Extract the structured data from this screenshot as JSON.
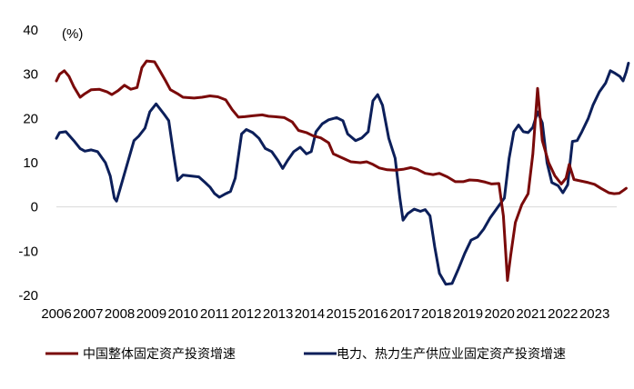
{
  "chart_data": {
    "type": "line",
    "title": "",
    "xlabel": "",
    "ylabel": "",
    "unit_label": "(%)",
    "xlim": [
      2006.0,
      2023.7
    ],
    "ylim": [
      -20,
      40
    ],
    "yticks": [
      40,
      30,
      20,
      10,
      0,
      -10,
      -20
    ],
    "ytick_labels": [
      "40",
      "30",
      "20",
      "10",
      "0",
      "-10",
      "-20"
    ],
    "xticks": [
      2006,
      2007,
      2008,
      2009,
      2010,
      2011,
      2012,
      2013,
      2014,
      2015,
      2016,
      2017,
      2018,
      2019,
      2020,
      2021,
      2022,
      2023
    ],
    "xtick_labels": [
      "2006",
      "2007",
      "2008",
      "2009",
      "2010",
      "2011",
      "2012",
      "2013",
      "2014",
      "2015",
      "2016",
      "2017",
      "2018",
      "2019",
      "2020",
      "2021",
      "2022",
      "2023"
    ],
    "legend_position": "bottom",
    "series": [
      {
        "name": "中国整体固定资产投资增速",
        "color": "#7a0a0a",
        "points": [
          [
            2006.0,
            28.5
          ],
          [
            2006.1,
            30.0
          ],
          [
            2006.25,
            30.8
          ],
          [
            2006.4,
            29.5
          ],
          [
            2006.55,
            27.2
          ],
          [
            2006.75,
            24.8
          ],
          [
            2006.9,
            25.6
          ],
          [
            2007.1,
            26.5
          ],
          [
            2007.35,
            26.6
          ],
          [
            2007.6,
            26.0
          ],
          [
            2007.75,
            25.4
          ],
          [
            2007.95,
            26.3
          ],
          [
            2008.15,
            27.5
          ],
          [
            2008.35,
            26.6
          ],
          [
            2008.55,
            27.0
          ],
          [
            2008.7,
            31.5
          ],
          [
            2008.85,
            33.0
          ],
          [
            2009.1,
            32.8
          ],
          [
            2009.25,
            31.0
          ],
          [
            2009.45,
            28.5
          ],
          [
            2009.6,
            26.5
          ],
          [
            2009.85,
            25.5
          ],
          [
            2010.0,
            24.8
          ],
          [
            2010.35,
            24.6
          ],
          [
            2010.6,
            24.8
          ],
          [
            2010.85,
            25.1
          ],
          [
            2011.1,
            24.9
          ],
          [
            2011.35,
            24.2
          ],
          [
            2011.55,
            22.0
          ],
          [
            2011.75,
            20.3
          ],
          [
            2011.95,
            20.4
          ],
          [
            2012.2,
            20.6
          ],
          [
            2012.5,
            20.8
          ],
          [
            2012.7,
            20.5
          ],
          [
            2012.9,
            20.4
          ],
          [
            2013.2,
            20.2
          ],
          [
            2013.45,
            19.2
          ],
          [
            2013.65,
            17.3
          ],
          [
            2013.9,
            16.8
          ],
          [
            2014.1,
            16.1
          ],
          [
            2014.35,
            15.6
          ],
          [
            2014.6,
            14.5
          ],
          [
            2014.75,
            12.0
          ],
          [
            2015.0,
            11.2
          ],
          [
            2015.3,
            10.2
          ],
          [
            2015.6,
            10.0
          ],
          [
            2015.8,
            10.2
          ],
          [
            2016.0,
            9.6
          ],
          [
            2016.2,
            8.8
          ],
          [
            2016.45,
            8.4
          ],
          [
            2016.7,
            8.3
          ],
          [
            2016.95,
            8.5
          ],
          [
            2017.2,
            8.9
          ],
          [
            2017.4,
            8.5
          ],
          [
            2017.65,
            7.6
          ],
          [
            2017.9,
            7.3
          ],
          [
            2018.1,
            7.6
          ],
          [
            2018.35,
            6.8
          ],
          [
            2018.6,
            5.7
          ],
          [
            2018.85,
            5.7
          ],
          [
            2019.05,
            6.1
          ],
          [
            2019.3,
            6.0
          ],
          [
            2019.55,
            5.6
          ],
          [
            2019.75,
            5.2
          ],
          [
            2019.98,
            5.3
          ],
          [
            2020.12,
            -2.0
          ],
          [
            2020.25,
            -16.6
          ],
          [
            2020.35,
            -11.0
          ],
          [
            2020.5,
            -3.5
          ],
          [
            2020.7,
            0.5
          ],
          [
            2020.9,
            3.0
          ],
          [
            2021.05,
            12.0
          ],
          [
            2021.2,
            26.8
          ],
          [
            2021.35,
            15.0
          ],
          [
            2021.55,
            10.0
          ],
          [
            2021.75,
            7.0
          ],
          [
            2021.95,
            5.2
          ],
          [
            2022.1,
            6.5
          ],
          [
            2022.2,
            9.6
          ],
          [
            2022.35,
            6.2
          ],
          [
            2022.55,
            5.9
          ],
          [
            2022.8,
            5.5
          ],
          [
            2023.0,
            5.1
          ],
          [
            2023.2,
            4.2
          ],
          [
            2023.45,
            3.2
          ],
          [
            2023.62,
            3.0
          ],
          [
            2023.78,
            3.1
          ],
          [
            2023.92,
            3.8
          ],
          [
            2024.0,
            4.2
          ]
        ]
      },
      {
        "name": "电力、热力生产供应业固定资产投资增速",
        "color": "#0c1f5a",
        "points": [
          [
            2006.0,
            15.5
          ],
          [
            2006.1,
            16.8
          ],
          [
            2006.3,
            17.0
          ],
          [
            2006.55,
            15.0
          ],
          [
            2006.75,
            13.2
          ],
          [
            2006.9,
            12.6
          ],
          [
            2007.1,
            12.9
          ],
          [
            2007.3,
            12.5
          ],
          [
            2007.55,
            10.0
          ],
          [
            2007.7,
            7.0
          ],
          [
            2007.83,
            2.0
          ],
          [
            2007.9,
            1.3
          ],
          [
            2008.05,
            5.0
          ],
          [
            2008.25,
            10.0
          ],
          [
            2008.45,
            15.0
          ],
          [
            2008.6,
            16.0
          ],
          [
            2008.8,
            17.8
          ],
          [
            2008.95,
            21.5
          ],
          [
            2009.15,
            23.3
          ],
          [
            2009.4,
            21.0
          ],
          [
            2009.55,
            19.5
          ],
          [
            2009.7,
            12.0
          ],
          [
            2009.83,
            6.0
          ],
          [
            2010.0,
            7.2
          ],
          [
            2010.25,
            7.0
          ],
          [
            2010.5,
            6.8
          ],
          [
            2010.7,
            5.5
          ],
          [
            2010.85,
            4.5
          ],
          [
            2011.0,
            3.0
          ],
          [
            2011.15,
            2.2
          ],
          [
            2011.35,
            3.0
          ],
          [
            2011.5,
            3.5
          ],
          [
            2011.65,
            6.5
          ],
          [
            2011.85,
            16.5
          ],
          [
            2012.0,
            17.5
          ],
          [
            2012.2,
            16.8
          ],
          [
            2012.4,
            15.5
          ],
          [
            2012.6,
            13.2
          ],
          [
            2012.8,
            12.5
          ],
          [
            2013.0,
            10.5
          ],
          [
            2013.15,
            8.7
          ],
          [
            2013.3,
            10.5
          ],
          [
            2013.5,
            12.5
          ],
          [
            2013.7,
            13.5
          ],
          [
            2013.9,
            12.0
          ],
          [
            2014.05,
            12.5
          ],
          [
            2014.2,
            17.0
          ],
          [
            2014.4,
            18.8
          ],
          [
            2014.6,
            19.7
          ],
          [
            2014.85,
            20.2
          ],
          [
            2015.05,
            19.5
          ],
          [
            2015.2,
            16.5
          ],
          [
            2015.45,
            15.0
          ],
          [
            2015.65,
            15.6
          ],
          [
            2015.85,
            17.0
          ],
          [
            2016.0,
            24.0
          ],
          [
            2016.15,
            25.4
          ],
          [
            2016.3,
            23.0
          ],
          [
            2016.5,
            15.5
          ],
          [
            2016.7,
            11.0
          ],
          [
            2016.85,
            2.0
          ],
          [
            2016.95,
            -3.0
          ],
          [
            2017.1,
            -1.5
          ],
          [
            2017.3,
            -0.5
          ],
          [
            2017.5,
            -1.0
          ],
          [
            2017.65,
            -0.6
          ],
          [
            2017.8,
            -2.0
          ],
          [
            2017.95,
            -9.0
          ],
          [
            2018.1,
            -15.0
          ],
          [
            2018.3,
            -17.5
          ],
          [
            2018.5,
            -17.3
          ],
          [
            2018.7,
            -14.0
          ],
          [
            2018.9,
            -10.5
          ],
          [
            2019.1,
            -7.5
          ],
          [
            2019.3,
            -6.8
          ],
          [
            2019.5,
            -5.0
          ],
          [
            2019.7,
            -2.5
          ],
          [
            2019.85,
            -1.0
          ],
          [
            2020.0,
            0.5
          ],
          [
            2020.15,
            2.0
          ],
          [
            2020.3,
            11.0
          ],
          [
            2020.45,
            17.0
          ],
          [
            2020.6,
            18.5
          ],
          [
            2020.75,
            17.0
          ],
          [
            2020.9,
            16.8
          ],
          [
            2021.05,
            18.0
          ],
          [
            2021.2,
            21.5
          ],
          [
            2021.35,
            19.0
          ],
          [
            2021.5,
            10.0
          ],
          [
            2021.65,
            5.5
          ],
          [
            2021.85,
            4.8
          ],
          [
            2022.0,
            3.2
          ],
          [
            2022.15,
            5.0
          ],
          [
            2022.3,
            14.8
          ],
          [
            2022.45,
            15.0
          ],
          [
            2022.6,
            17.0
          ],
          [
            2022.8,
            20.0
          ],
          [
            2022.95,
            23.0
          ],
          [
            2023.15,
            26.0
          ],
          [
            2023.35,
            28.0
          ],
          [
            2023.5,
            30.8
          ],
          [
            2023.65,
            30.2
          ],
          [
            2023.8,
            29.5
          ],
          [
            2023.9,
            28.5
          ],
          [
            2024.0,
            30.5
          ],
          [
            2024.07,
            32.5
          ]
        ]
      }
    ]
  }
}
